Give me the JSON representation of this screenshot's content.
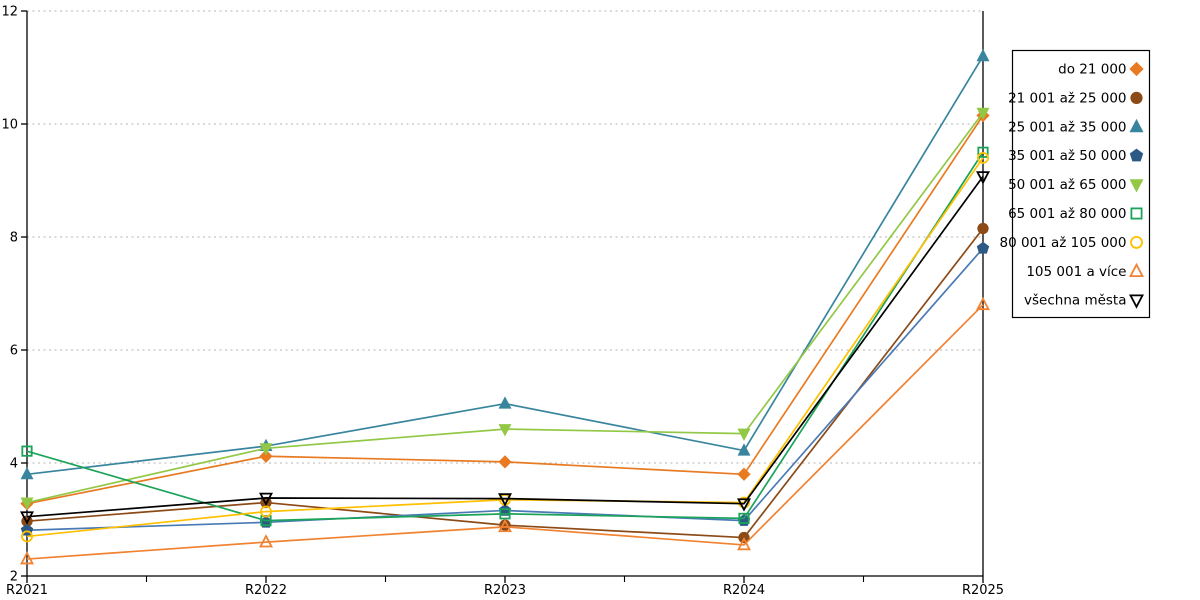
{
  "chart_data": {
    "type": "line",
    "title": "",
    "xlabel": "",
    "ylabel": "",
    "x_labels": [
      "R2021",
      "R2022",
      "R2023",
      "R2024",
      "R2025"
    ],
    "ylim": [
      2,
      12
    ],
    "y_ticks": [
      2,
      4,
      6,
      8,
      10,
      12
    ],
    "grid": "horizontal-dashed",
    "grid_values": [
      4,
      6,
      8,
      10,
      12
    ],
    "grid_color": "#b3b3b3",
    "axis_color": "#000000",
    "legend_position": "right-outside",
    "legend_border_color": "#000000",
    "series": [
      {
        "name": "do 21 000",
        "marker": "diamond",
        "fill": "filled",
        "color": "#e87a22",
        "values": [
          3.28,
          4.12,
          4.02,
          3.8,
          10.15
        ]
      },
      {
        "name": "21 001 až 25 000",
        "marker": "circle",
        "fill": "filled",
        "color": "#8c4a16",
        "values": [
          2.97,
          3.3,
          2.9,
          2.68,
          8.15
        ]
      },
      {
        "name": "25 001 až 35 000",
        "marker": "triangle-up",
        "fill": "filled",
        "color": "#39859e",
        "values": [
          3.8,
          4.3,
          5.05,
          4.22,
          11.2
        ]
      },
      {
        "name": "35 001 až 50 000",
        "marker": "pentagon",
        "fill": "filled",
        "color": "#2d5986",
        "line_color": "#4a7ab5",
        "values": [
          2.81,
          2.95,
          3.16,
          2.98,
          7.8
        ]
      },
      {
        "name": "50 001 až 65 000",
        "marker": "triangle-down",
        "fill": "filled",
        "color": "#92c846",
        "values": [
          3.3,
          4.26,
          4.6,
          4.52,
          10.2
        ]
      },
      {
        "name": "65 001 až 80 000",
        "marker": "square",
        "fill": "open",
        "color": "#1ca35a",
        "values": [
          4.21,
          2.98,
          3.1,
          3.02,
          9.5
        ]
      },
      {
        "name": "80 001 až 105 000",
        "marker": "circle",
        "fill": "open",
        "color": "#ffc000",
        "values": [
          2.7,
          3.14,
          3.35,
          3.3,
          9.4
        ]
      },
      {
        "name": "105 001 a více",
        "marker": "triangle-up",
        "fill": "open",
        "color": "#f08232",
        "values": [
          2.3,
          2.6,
          2.87,
          2.55,
          6.8
        ]
      },
      {
        "name": "všechna města",
        "marker": "triangle-down",
        "fill": "open",
        "color": "#000000",
        "values": [
          3.05,
          3.38,
          3.37,
          3.28,
          9.07
        ]
      }
    ]
  }
}
